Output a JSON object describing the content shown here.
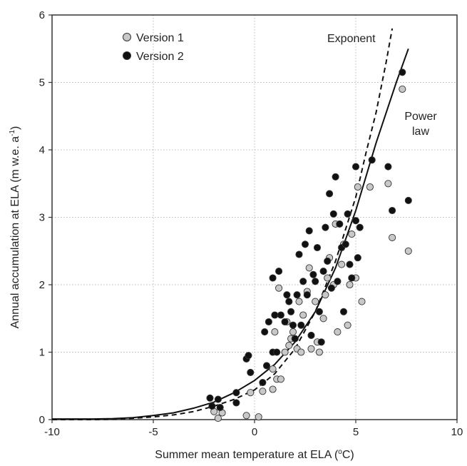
{
  "chart_data": {
    "type": "scatter",
    "xlabel": {
      "main": "Summer mean temperature at ELA (",
      "sup": "o",
      "tail": "C)"
    },
    "ylabel": {
      "main": "Annual accumulation at ELA (m w.e. a",
      "sup": "-1",
      "tail": ")"
    },
    "xlim": [
      -10,
      10
    ],
    "ylim": [
      0,
      6
    ],
    "xticks": [
      -10,
      -5,
      0,
      5,
      10
    ],
    "yticks": [
      0,
      1,
      2,
      3,
      4,
      5,
      6
    ],
    "grid": true,
    "legend_position": "top-left",
    "series": [
      {
        "name": "Version 1",
        "color": "#c8c8c8",
        "points": [
          [
            -2.0,
            0.12
          ],
          [
            -1.8,
            0.02
          ],
          [
            -1.6,
            0.1
          ],
          [
            -0.4,
            0.06
          ],
          [
            0.2,
            0.04
          ],
          [
            -0.2,
            0.4
          ],
          [
            0.4,
            0.42
          ],
          [
            0.9,
            0.45
          ],
          [
            0.9,
            0.75
          ],
          [
            1.1,
            0.6
          ],
          [
            1.3,
            0.6
          ],
          [
            1.5,
            1.0
          ],
          [
            1.7,
            1.1
          ],
          [
            1.6,
            1.45
          ],
          [
            1.9,
            1.3
          ],
          [
            2.1,
            1.05
          ],
          [
            2.3,
            1.0
          ],
          [
            2.4,
            1.55
          ],
          [
            2.6,
            1.9
          ],
          [
            2.8,
            1.05
          ],
          [
            3.0,
            1.75
          ],
          [
            3.2,
            1.0
          ],
          [
            3.4,
            1.5
          ],
          [
            3.5,
            1.85
          ],
          [
            3.7,
            2.4
          ],
          [
            3.9,
            2.0
          ],
          [
            4.0,
            2.9
          ],
          [
            4.1,
            1.3
          ],
          [
            4.3,
            2.3
          ],
          [
            4.6,
            1.4
          ],
          [
            4.7,
            2.0
          ],
          [
            5.0,
            2.1
          ],
          [
            5.1,
            3.45
          ],
          [
            5.3,
            1.75
          ],
          [
            5.7,
            3.45
          ],
          [
            6.6,
            3.5
          ],
          [
            6.8,
            2.7
          ],
          [
            7.3,
            4.9
          ],
          [
            7.6,
            2.5
          ],
          [
            1.2,
            1.95
          ],
          [
            1.8,
            1.2
          ],
          [
            2.7,
            2.25
          ],
          [
            3.6,
            2.1
          ],
          [
            4.4,
            2.6
          ],
          [
            1.0,
            1.3
          ],
          [
            2.2,
            1.75
          ],
          [
            3.1,
            1.15
          ],
          [
            4.8,
            2.75
          ]
        ]
      },
      {
        "name": "Version 2",
        "color": "#111111",
        "points": [
          [
            -2.2,
            0.32
          ],
          [
            -2.1,
            0.2
          ],
          [
            -1.8,
            0.3
          ],
          [
            -1.7,
            0.18
          ],
          [
            -0.9,
            0.25
          ],
          [
            -0.9,
            0.4
          ],
          [
            -0.4,
            0.9
          ],
          [
            -0.3,
            0.95
          ],
          [
            -0.2,
            0.7
          ],
          [
            0.4,
            0.55
          ],
          [
            0.5,
            1.3
          ],
          [
            0.7,
            1.45
          ],
          [
            0.9,
            1.0
          ],
          [
            1.0,
            1.55
          ],
          [
            0.9,
            2.1
          ],
          [
            1.2,
            2.2
          ],
          [
            1.1,
            1.0
          ],
          [
            1.3,
            1.55
          ],
          [
            1.5,
            1.45
          ],
          [
            1.6,
            1.85
          ],
          [
            1.8,
            1.6
          ],
          [
            1.9,
            1.4
          ],
          [
            2.0,
            1.2
          ],
          [
            2.1,
            1.85
          ],
          [
            2.2,
            2.45
          ],
          [
            2.3,
            1.4
          ],
          [
            2.4,
            2.05
          ],
          [
            2.5,
            2.6
          ],
          [
            2.6,
            1.85
          ],
          [
            2.7,
            2.8
          ],
          [
            2.8,
            1.25
          ],
          [
            3.0,
            2.05
          ],
          [
            3.1,
            2.55
          ],
          [
            3.2,
            1.6
          ],
          [
            3.3,
            1.15
          ],
          [
            3.4,
            2.2
          ],
          [
            3.5,
            2.85
          ],
          [
            3.6,
            2.35
          ],
          [
            3.8,
            1.95
          ],
          [
            3.9,
            3.05
          ],
          [
            4.0,
            3.6
          ],
          [
            4.1,
            2.05
          ],
          [
            4.2,
            2.9
          ],
          [
            4.3,
            2.55
          ],
          [
            4.4,
            1.6
          ],
          [
            4.5,
            2.6
          ],
          [
            4.6,
            3.05
          ],
          [
            4.7,
            2.3
          ],
          [
            4.8,
            2.1
          ],
          [
            5.0,
            2.95
          ],
          [
            5.0,
            3.75
          ],
          [
            5.1,
            2.4
          ],
          [
            5.2,
            2.85
          ],
          [
            5.8,
            3.85
          ],
          [
            6.6,
            3.75
          ],
          [
            6.8,
            3.1
          ],
          [
            7.3,
            5.15
          ],
          [
            7.6,
            3.25
          ],
          [
            1.7,
            1.75
          ],
          [
            3.7,
            3.35
          ],
          [
            0.6,
            0.8
          ],
          [
            2.9,
            2.15
          ]
        ]
      }
    ],
    "curves": [
      {
        "label": "Power law",
        "style": "solid",
        "points": [
          [
            -10,
            0.01
          ],
          [
            -8,
            0.01
          ],
          [
            -7,
            0.015
          ],
          [
            -6,
            0.03
          ],
          [
            -5,
            0.06
          ],
          [
            -4,
            0.1
          ],
          [
            -3,
            0.17
          ],
          [
            -2,
            0.26
          ],
          [
            -1,
            0.4
          ],
          [
            0,
            0.58
          ],
          [
            1,
            0.82
          ],
          [
            2,
            1.15
          ],
          [
            3,
            1.6
          ],
          [
            4,
            2.25
          ],
          [
            5,
            3.1
          ],
          [
            6,
            4.1
          ],
          [
            7,
            5.0
          ],
          [
            7.6,
            5.5
          ]
        ]
      },
      {
        "label": "Exponent",
        "style": "dashed",
        "points": [
          [
            -10,
            0.0
          ],
          [
            -8,
            0.0
          ],
          [
            -7,
            0.005
          ],
          [
            -6,
            0.02
          ],
          [
            -5,
            0.04
          ],
          [
            -4,
            0.07
          ],
          [
            -3,
            0.12
          ],
          [
            -2,
            0.2
          ],
          [
            -1,
            0.3
          ],
          [
            0,
            0.44
          ],
          [
            1,
            0.68
          ],
          [
            2,
            1.05
          ],
          [
            3,
            1.6
          ],
          [
            4,
            2.35
          ],
          [
            5,
            3.3
          ],
          [
            5.5,
            3.95
          ],
          [
            6,
            4.55
          ],
          [
            6.5,
            5.3
          ],
          [
            6.8,
            5.8
          ]
        ]
      }
    ],
    "annotations": [
      {
        "lines": [
          "Exponent"
        ]
      },
      {
        "lines": [
          "Power",
          "law"
        ]
      }
    ]
  }
}
